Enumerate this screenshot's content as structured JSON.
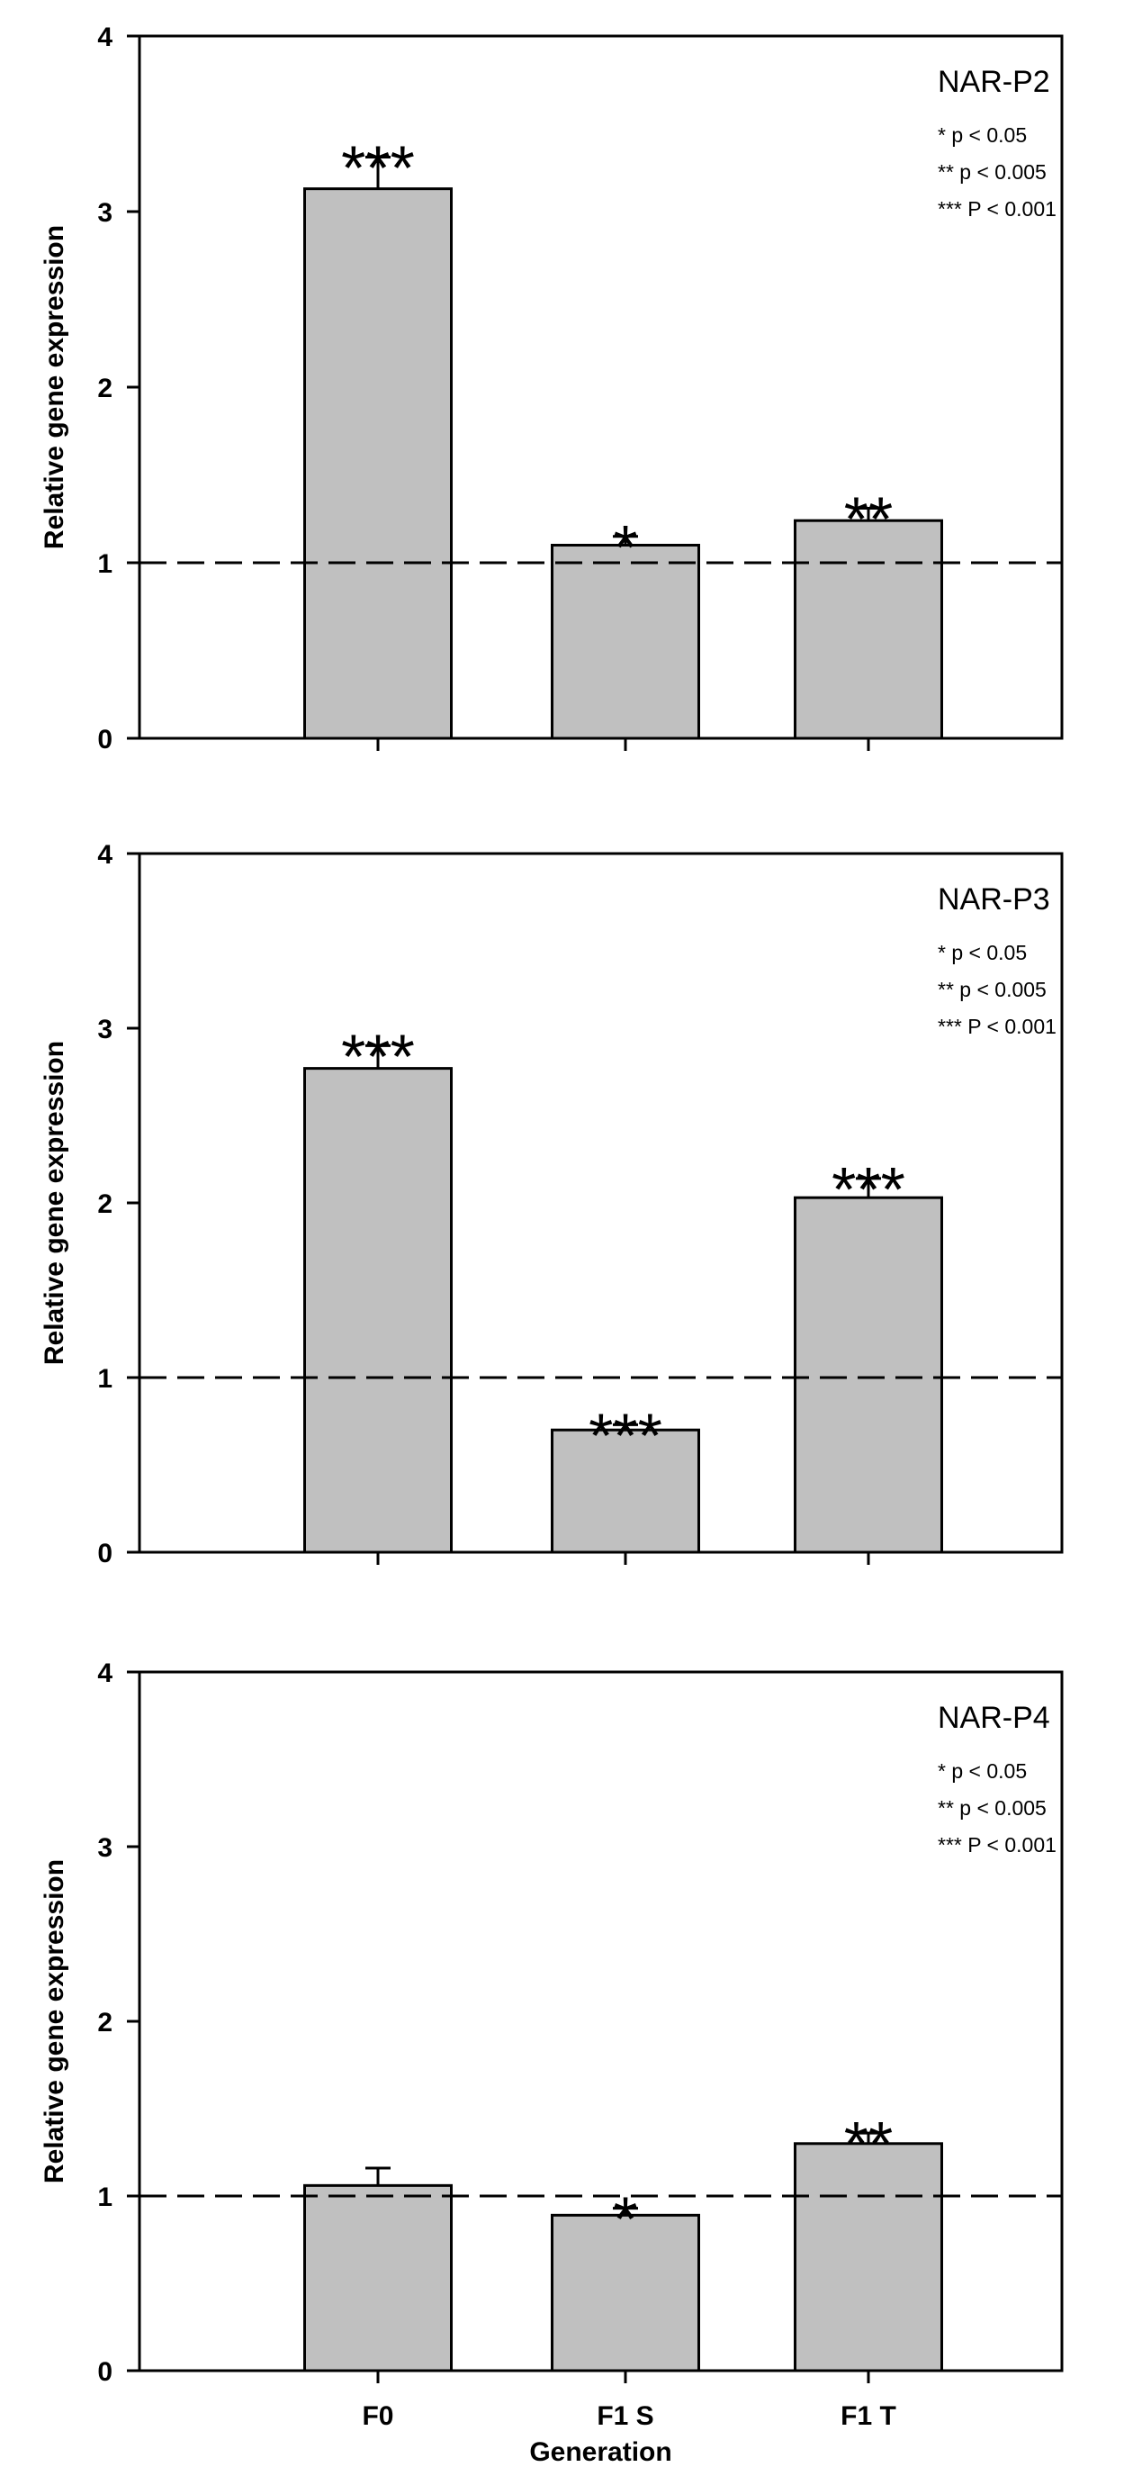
{
  "chart_data": [
    {
      "type": "bar",
      "title": "NAR-P2",
      "categories": [
        "F0",
        "F1 S",
        "F1 T"
      ],
      "values": [
        3.13,
        1.1,
        1.24
      ],
      "errors": [
        0.18,
        0.05,
        0.07
      ],
      "significance": [
        "***",
        "*",
        "**"
      ],
      "legend": [
        "* p < 0.05",
        "** p < 0.005",
        "*** P < 0.001"
      ],
      "ylabel": "Relative gene expression",
      "xlabel": "",
      "ylim": [
        0,
        4
      ],
      "yticks": [
        "0",
        "1",
        "2",
        "3",
        "4"
      ],
      "reference_line": 1.0
    },
    {
      "type": "bar",
      "title": "NAR-P3",
      "categories": [
        "F0",
        "F1 S",
        "F1 T"
      ],
      "values": [
        2.77,
        0.7,
        2.03
      ],
      "errors": [
        0.13,
        0.03,
        0.11
      ],
      "significance": [
        "***",
        "***",
        "***"
      ],
      "legend": [
        "* p < 0.05",
        "** p < 0.005",
        "*** P < 0.001"
      ],
      "ylabel": "Relative gene expression",
      "xlabel": "",
      "ylim": [
        0,
        4
      ],
      "yticks": [
        "0",
        "1",
        "2",
        "3",
        "4"
      ],
      "reference_line": 1.0
    },
    {
      "type": "bar",
      "title": "NAR-P4",
      "categories": [
        "F0",
        "F1 S",
        "F1 T"
      ],
      "values": [
        1.06,
        0.89,
        1.3
      ],
      "errors": [
        0.1,
        0.04,
        0.06
      ],
      "significance": [
        "",
        "*",
        "**"
      ],
      "legend": [
        "* p < 0.05",
        "** p < 0.005",
        "*** P < 0.001"
      ],
      "ylabel": "Relative gene expression",
      "xlabel": "Generation",
      "ylim": [
        0,
        4
      ],
      "yticks": [
        "0",
        "1",
        "2",
        "3",
        "4"
      ],
      "reference_line": 1.0
    }
  ],
  "colors": {
    "bar_fill": "#c0c0c0",
    "bar_stroke": "#000000",
    "axis": "#000000",
    "reference_line": "#000000"
  }
}
